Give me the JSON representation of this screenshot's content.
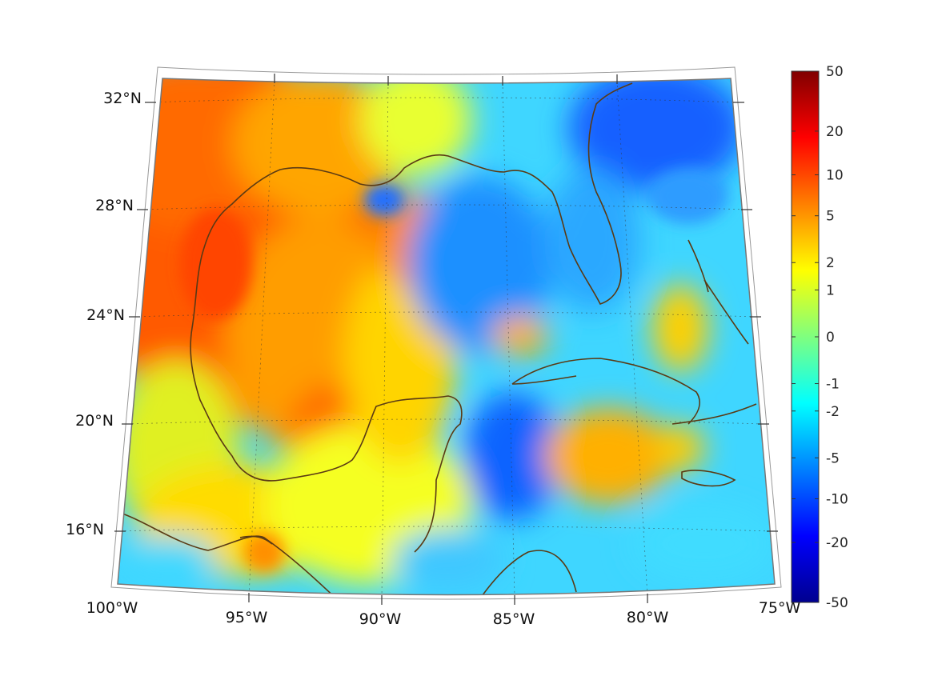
{
  "map": {
    "projection": "lambert-conic",
    "region": "Gulf of Mexico and Caribbean",
    "lon_range": [
      -100,
      -75
    ],
    "lat_range": [
      14,
      33
    ],
    "grid": true,
    "coastline_color": "#5a3a14",
    "lon_labels": [
      "100°W",
      "95°W",
      "90°W",
      "85°W",
      "80°W",
      "75°W"
    ],
    "lat_labels": [
      "32°N",
      "28°N",
      "24°N",
      "20°N",
      "16°N"
    ]
  },
  "colorbar": {
    "colormap": "jet",
    "scale": "symmetric-log",
    "range": [
      -50,
      50
    ],
    "placement": "right",
    "tick_labels": [
      "50",
      "20",
      "10",
      "5",
      "2",
      "1",
      "0",
      "-1",
      "-2",
      "-5",
      "-10",
      "-20",
      "-50"
    ]
  }
}
